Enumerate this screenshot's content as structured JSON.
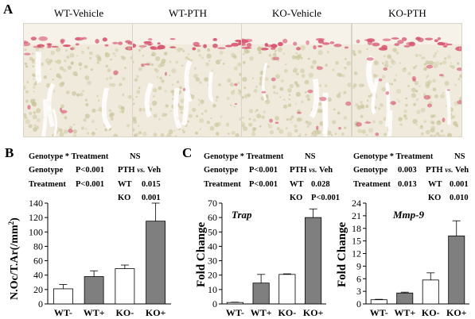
{
  "panel_a": {
    "letter": "A",
    "images": [
      {
        "title": "WT-Vehicle"
      },
      {
        "title": "WT-PTH"
      },
      {
        "title": "KO-Vehicle"
      },
      {
        "title": "KO-PTH"
      }
    ]
  },
  "panel_b": {
    "letter": "B",
    "stats": {
      "line1_label": "Genotype * Treatment",
      "line1_value": "NS",
      "line2_label": "Genotype",
      "line2_value": "P<0.001",
      "line3_label": "Treatment",
      "line3_value": "P<0.001",
      "pth_label": "PTH",
      "vs": "vs.",
      "veh": "Veh",
      "wt_label": "WT",
      "wt_value": "0.015",
      "ko_label": "KO",
      "ko_value": "0.001"
    }
  },
  "panel_c": {
    "letter": "C",
    "stats_left": {
      "line1_label": "Genotype * Treatment",
      "line1_value": "NS",
      "line2_label": "Genotype",
      "line2_value": "P<0.001",
      "line3_label": "Treatment",
      "line3_value": "P<0.001",
      "pth_label": "PTH",
      "vs": "vs.",
      "veh": "Veh",
      "wt_label": "WT",
      "wt_value": "0.028",
      "ko_label": "KO",
      "ko_value": "P<0.001"
    },
    "stats_right": {
      "line1_label": "Genotype * Treatment",
      "line1_value": "NS",
      "line2_label": "Genotype",
      "line2_value": "0.003",
      "line3_label": "Treatment",
      "line3_value": "0.013",
      "pth_label": "PTH",
      "vs": "vs.",
      "veh": "Veh",
      "wt_label": "WT",
      "wt_value": "0.001",
      "ko_label": "KO",
      "ko_value": "0.010"
    }
  },
  "colors": {
    "filled_bar": "#7f7f7f",
    "open_bar": "#ffffff",
    "stain": "#d9506e",
    "tissue": "#c9c49a"
  },
  "chart_data": [
    {
      "type": "bar",
      "title": "",
      "ylabel": "N.Oc/T.Ar(/mm2)",
      "xlabel": "",
      "categories": [
        "WT-",
        "WT+",
        "KO-",
        "KO+"
      ],
      "values": [
        21,
        38,
        49,
        115
      ],
      "errors": [
        6,
        8,
        5,
        25
      ],
      "fills": [
        "open",
        "filled",
        "open",
        "filled"
      ],
      "ylim": [
        0,
        140
      ],
      "yticks": [
        0,
        20,
        40,
        60,
        80,
        100,
        120,
        140
      ]
    },
    {
      "type": "bar",
      "title": "Trap",
      "ylabel": "Fold Change",
      "xlabel": "",
      "categories": [
        "WT-",
        "WT+",
        "KO-",
        "KO+"
      ],
      "values": [
        1,
        14.5,
        20.5,
        60
      ],
      "errors": [
        0.2,
        6,
        0.4,
        6
      ],
      "fills": [
        "open",
        "filled",
        "open",
        "filled"
      ],
      "ylim": [
        0,
        70
      ],
      "yticks": [
        0,
        10,
        20,
        30,
        40,
        50,
        60,
        70
      ]
    },
    {
      "type": "bar",
      "title": "Mmp-9",
      "ylabel": "Fold Change",
      "xlabel": "",
      "categories": [
        "WT-",
        "WT+",
        "KO-",
        "KO+"
      ],
      "values": [
        1,
        2.6,
        5.7,
        16.2
      ],
      "errors": [
        0.1,
        0.2,
        1.7,
        3.6
      ],
      "fills": [
        "open",
        "filled",
        "open",
        "filled"
      ],
      "ylim": [
        0,
        24
      ],
      "yticks": [
        0,
        3,
        6,
        9,
        12,
        15,
        18,
        21,
        24
      ]
    }
  ]
}
